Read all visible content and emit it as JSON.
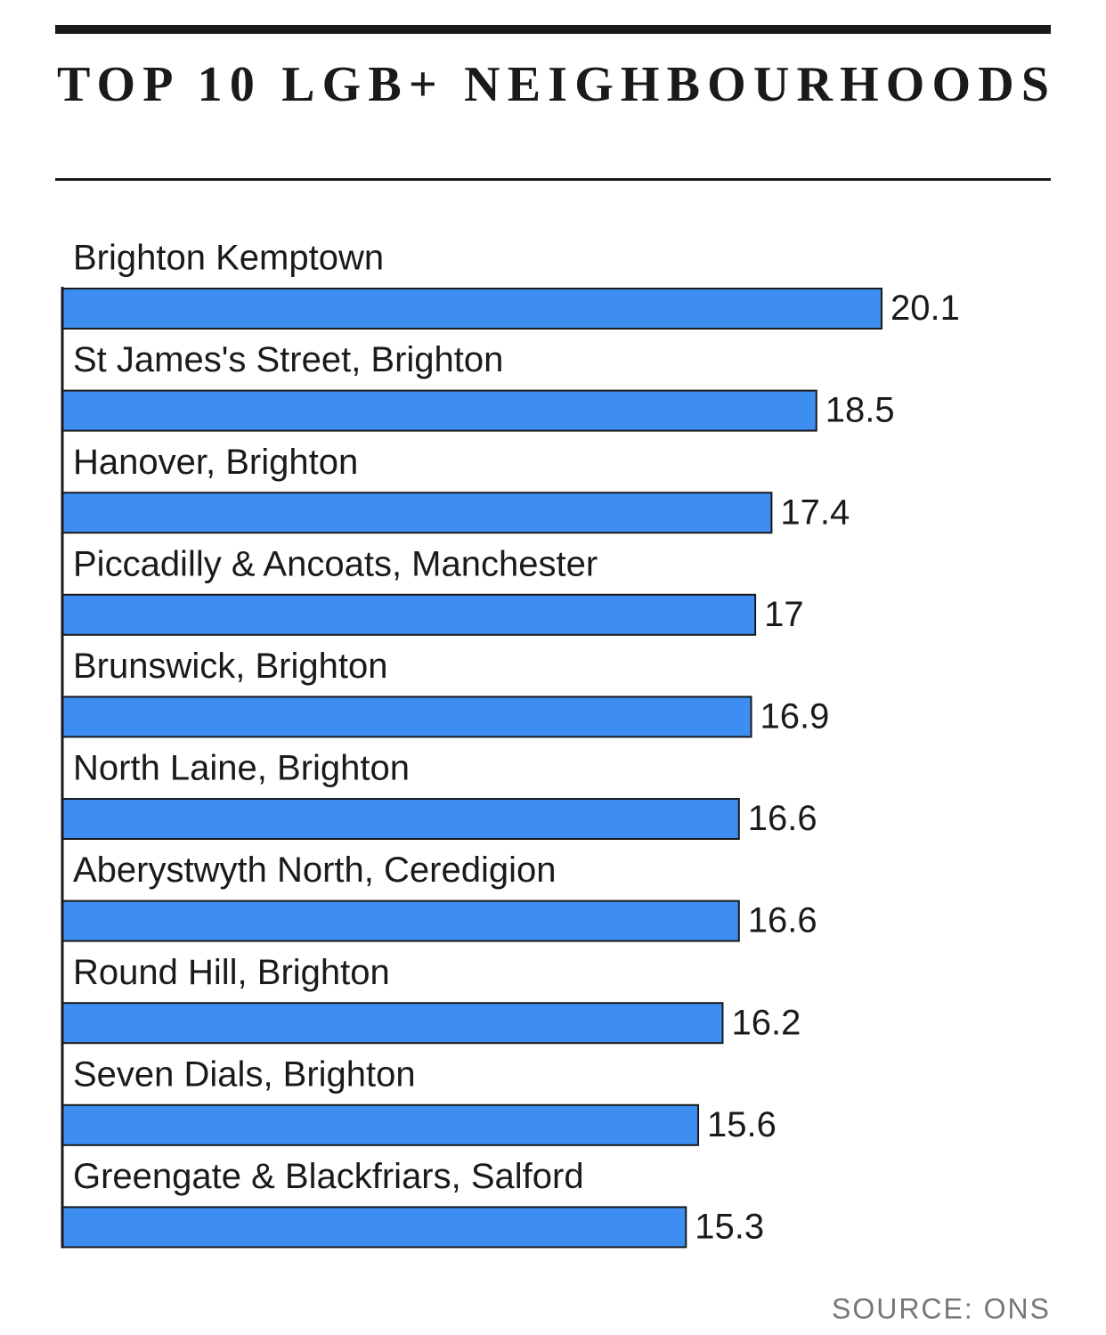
{
  "chart_data": {
    "type": "bar",
    "orientation": "horizontal",
    "title": "TOP 10 LGB+ NEIGHBOURHOODS",
    "source": "SOURCE: ONS",
    "categories": [
      "Brighton Kemptown",
      "St James's Street, Brighton",
      "Hanover, Brighton",
      "Piccadilly & Ancoats, Manchester",
      "Brunswick, Brighton",
      "North Laine, Brighton",
      "Aberystwyth North, Ceredigion",
      "Round Hill, Brighton",
      "Seven Dials, Brighton",
      "Greengate & Blackfriars, Salford"
    ],
    "values": [
      20.1,
      18.5,
      17.4,
      17,
      16.9,
      16.6,
      16.6,
      16.2,
      15.6,
      15.3
    ],
    "color": "#3d8ef0"
  }
}
